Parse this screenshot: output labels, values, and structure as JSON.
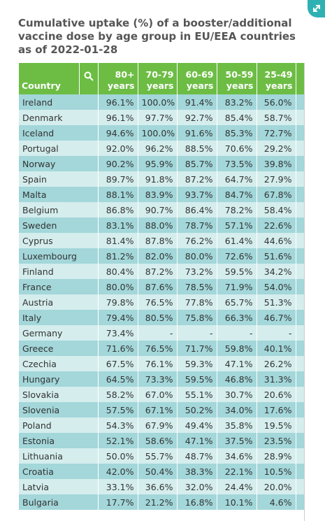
{
  "header": {
    "title": "Cumulative uptake (%) of a booster/additional vaccine dose by age group in EU/EEA countries as of 2022-01-28"
  },
  "table": {
    "columns": [
      "Country",
      "80+ years",
      "70-79 years",
      "60-69 years",
      "50-59 years",
      "25-49 years"
    ],
    "rows": [
      [
        "Ireland",
        "96.1%",
        "100.0%",
        "91.4%",
        "83.2%",
        "56.0%"
      ],
      [
        "Denmark",
        "96.1%",
        "97.7%",
        "92.7%",
        "85.4%",
        "58.7%"
      ],
      [
        "Iceland",
        "94.6%",
        "100.0%",
        "91.6%",
        "85.3%",
        "72.7%"
      ],
      [
        "Portugal",
        "92.0%",
        "96.2%",
        "88.5%",
        "70.6%",
        "29.2%"
      ],
      [
        "Norway",
        "90.2%",
        "95.9%",
        "85.7%",
        "73.5%",
        "39.8%"
      ],
      [
        "Spain",
        "89.7%",
        "91.8%",
        "87.2%",
        "64.7%",
        "27.9%"
      ],
      [
        "Malta",
        "88.1%",
        "83.9%",
        "93.7%",
        "84.7%",
        "67.8%"
      ],
      [
        "Belgium",
        "86.8%",
        "90.7%",
        "86.4%",
        "78.2%",
        "58.4%"
      ],
      [
        "Sweden",
        "83.1%",
        "88.0%",
        "78.7%",
        "57.1%",
        "22.6%"
      ],
      [
        "Cyprus",
        "81.4%",
        "87.8%",
        "76.2%",
        "61.4%",
        "44.6%"
      ],
      [
        "Luxembourg",
        "81.2%",
        "82.0%",
        "80.0%",
        "72.6%",
        "51.6%"
      ],
      [
        "Finland",
        "80.4%",
        "87.2%",
        "73.2%",
        "59.5%",
        "34.2%"
      ],
      [
        "France",
        "80.0%",
        "87.6%",
        "78.5%",
        "71.9%",
        "54.0%"
      ],
      [
        "Austria",
        "79.8%",
        "76.5%",
        "77.8%",
        "65.7%",
        "51.3%"
      ],
      [
        "Italy",
        "79.4%",
        "80.5%",
        "75.8%",
        "66.3%",
        "46.7%"
      ],
      [
        "Germany",
        "73.4%",
        "-",
        "-",
        "-",
        "-"
      ],
      [
        "Greece",
        "71.6%",
        "76.5%",
        "71.7%",
        "59.8%",
        "40.1%"
      ],
      [
        "Czechia",
        "67.5%",
        "76.1%",
        "59.3%",
        "47.1%",
        "26.2%"
      ],
      [
        "Hungary",
        "64.5%",
        "73.3%",
        "59.5%",
        "46.8%",
        "31.3%"
      ],
      [
        "Slovakia",
        "58.2%",
        "67.0%",
        "55.1%",
        "30.7%",
        "20.6%"
      ],
      [
        "Slovenia",
        "57.5%",
        "67.1%",
        "50.2%",
        "34.0%",
        "17.6%"
      ],
      [
        "Poland",
        "54.3%",
        "67.9%",
        "49.4%",
        "35.8%",
        "19.5%"
      ],
      [
        "Estonia",
        "52.1%",
        "58.6%",
        "47.1%",
        "37.5%",
        "23.5%"
      ],
      [
        "Lithuania",
        "50.0%",
        "55.7%",
        "48.7%",
        "34.6%",
        "28.9%"
      ],
      [
        "Croatia",
        "42.0%",
        "50.4%",
        "38.3%",
        "22.1%",
        "10.5%"
      ],
      [
        "Latvia",
        "33.1%",
        "36.6%",
        "32.0%",
        "24.4%",
        "20.0%"
      ],
      [
        "Bulgaria",
        "17.7%",
        "21.2%",
        "16.8%",
        "10.1%",
        "4.6%"
      ]
    ]
  }
}
